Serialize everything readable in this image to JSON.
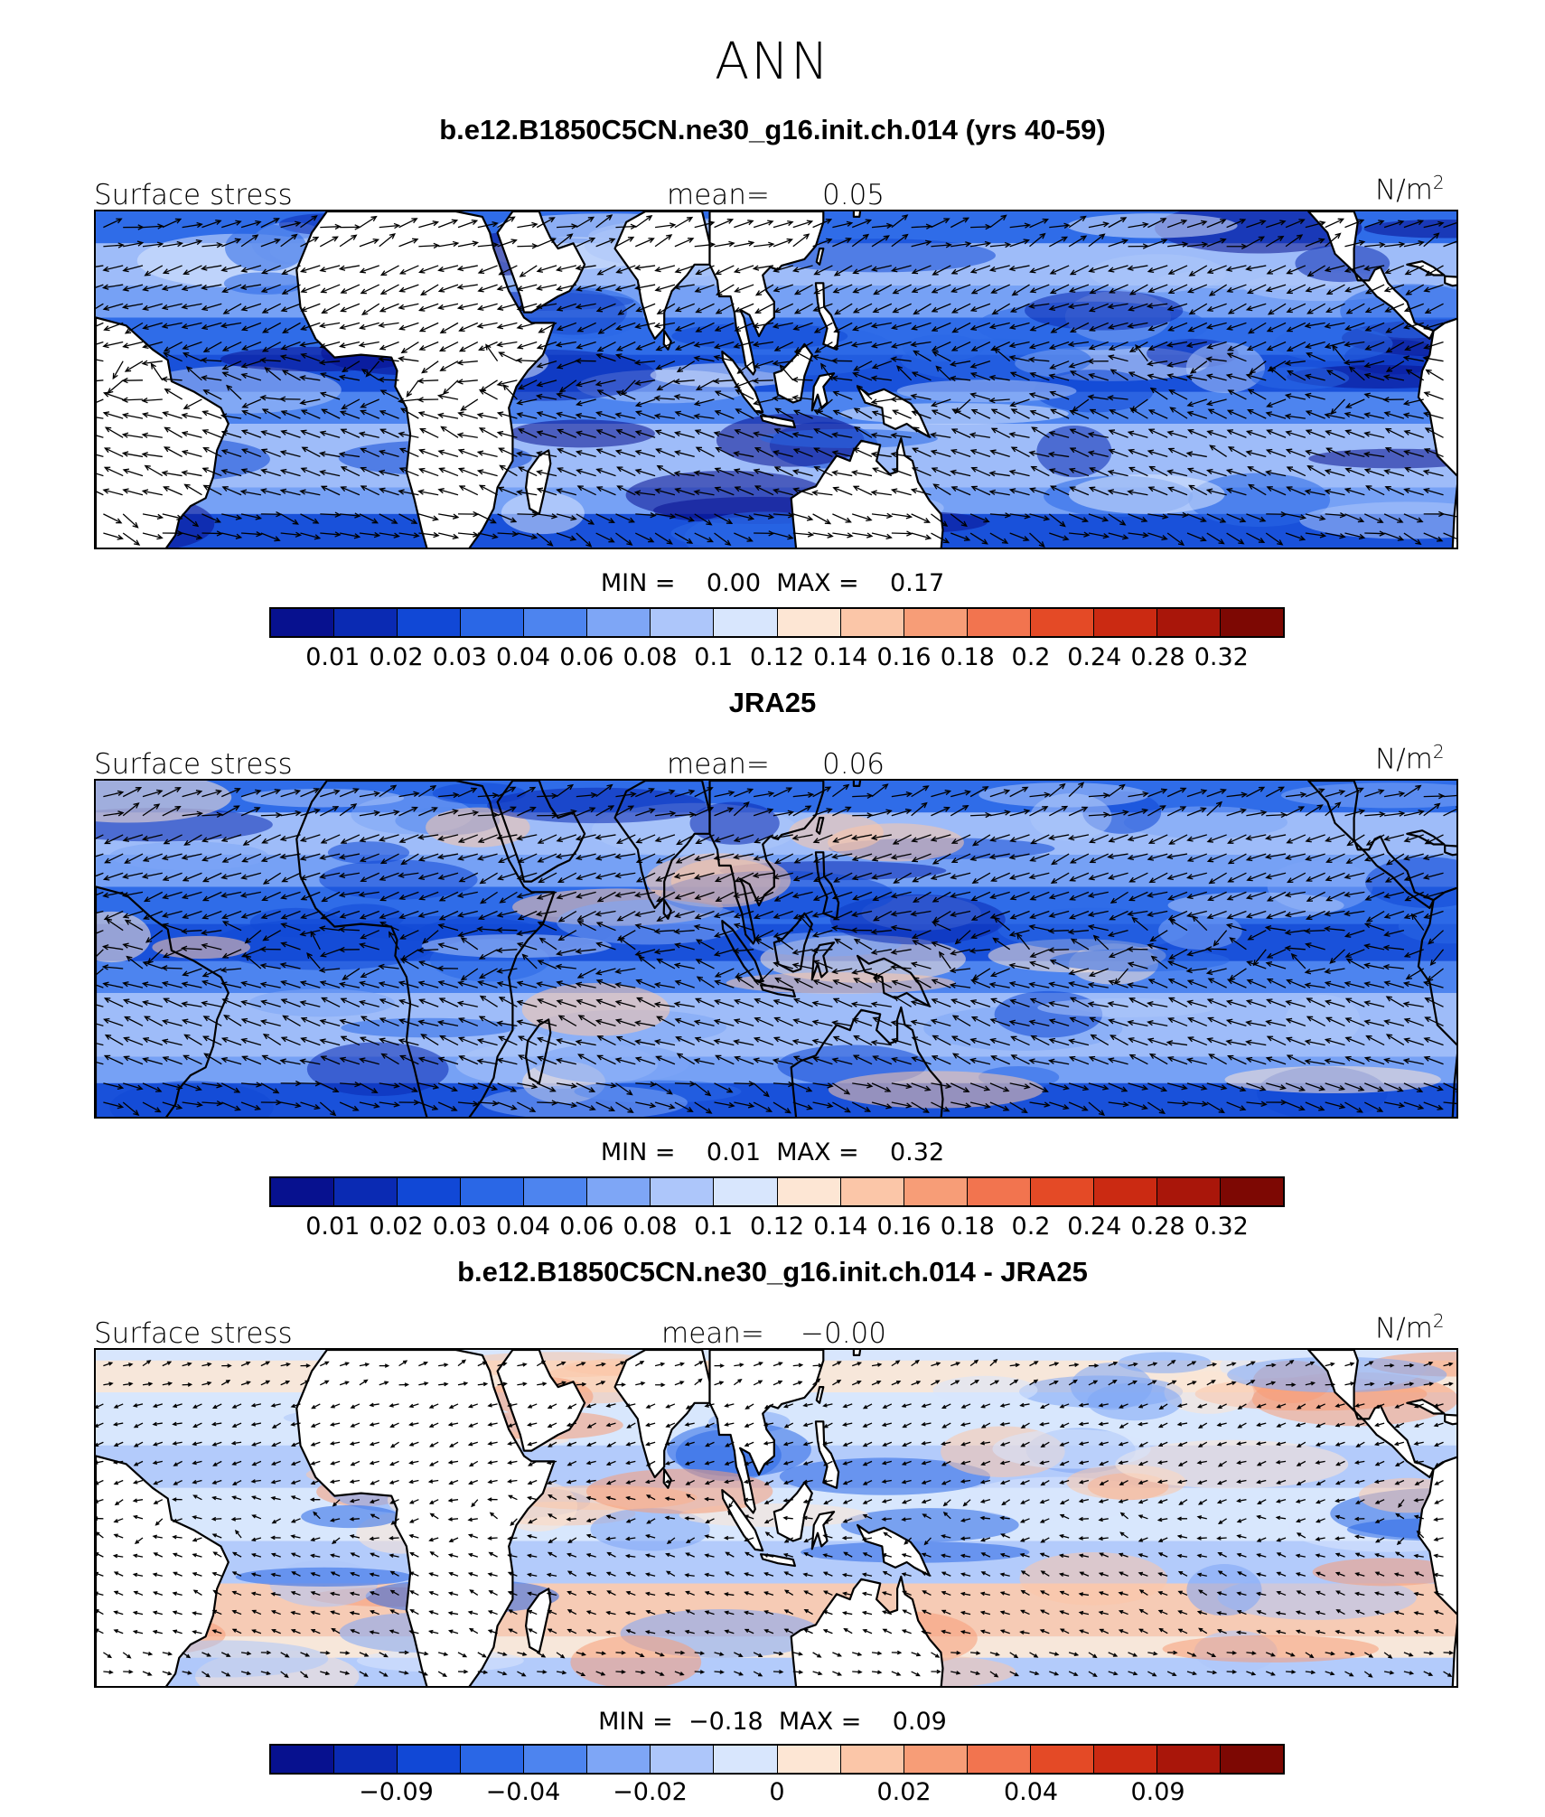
{
  "figure_title": "ANN",
  "units": "N/m",
  "units_superscript": "2",
  "color_scale": [
    "#07118f",
    "#0a2ab3",
    "#1148d6",
    "#2a67e6",
    "#4d84ef",
    "#7ea6f6",
    "#adc6fa",
    "#d8e6fd",
    "#fde6d4",
    "#fbc6a8",
    "#f79d77",
    "#f2744f",
    "#e44a26",
    "#cb2a12",
    "#a9160a",
    "#7d0803"
  ],
  "land_color": "#ffffff",
  "panels": [
    {
      "title": "b.e12.B1850C5CN.ne30_g16.init.ch.014 (yrs 40-59)",
      "field_label": "Surface stress",
      "mean_label": "mean=",
      "mean_value": "0.05",
      "min_label": "MIN =",
      "min_value": "0.00",
      "max_label": "MAX =",
      "max_value": "0.17",
      "colorbar_ticks": [
        "0.01",
        "0.02",
        "0.03",
        "0.04",
        "0.06",
        "0.08",
        "0.1",
        "0.12",
        "0.14",
        "0.16",
        "0.18",
        "0.2",
        "0.24",
        "0.28",
        "0.32"
      ]
    },
    {
      "title": "JRA25",
      "field_label": "Surface stress",
      "mean_label": "mean=",
      "mean_value": "0.06",
      "min_label": "MIN =",
      "min_value": "0.01",
      "max_label": "MAX =",
      "max_value": "0.32",
      "colorbar_ticks": [
        "0.01",
        "0.02",
        "0.03",
        "0.04",
        "0.06",
        "0.08",
        "0.1",
        "0.12",
        "0.14",
        "0.16",
        "0.18",
        "0.2",
        "0.24",
        "0.28",
        "0.32"
      ]
    },
    {
      "title": "b.e12.B1850C5CN.ne30_g16.init.ch.014 - JRA25",
      "field_label": "Surface stress",
      "mean_label": "mean=",
      "mean_value": "−0.00",
      "min_label": "MIN =",
      "min_value": "−0.18",
      "max_label": "MAX =",
      "max_value": "0.09",
      "colorbar_ticks": [
        "−0.09",
        "−0.04",
        "−0.02",
        "0",
        "0.02",
        "0.04",
        "0.09"
      ]
    }
  ]
}
